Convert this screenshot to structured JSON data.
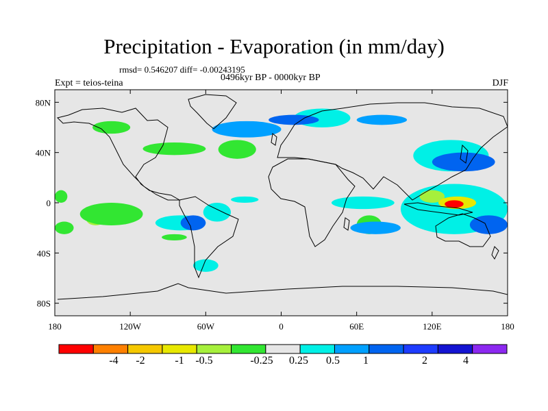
{
  "figure": {
    "title": "Precipitation - Evaporation (in mm/day)",
    "stats": "rmsd= 0.546207 diff= -0.00243195",
    "period": "0496kyr BP - 0000kyr BP",
    "experiment": "Expt = teios-teina",
    "season": "DJF"
  },
  "chart_data": {
    "type": "heatmap",
    "title": "Precipitation - Evaporation (in mm/day)",
    "x_range": [
      -180,
      180
    ],
    "y_range": [
      -90,
      90
    ],
    "x_ticks": [
      {
        "value": -180,
        "label": "180"
      },
      {
        "value": -120,
        "label": "120W"
      },
      {
        "value": -60,
        "label": "60W"
      },
      {
        "value": 0,
        "label": "0"
      },
      {
        "value": 60,
        "label": "60E"
      },
      {
        "value": 120,
        "label": "120E"
      },
      {
        "value": 180,
        "label": "180"
      }
    ],
    "y_ticks": [
      {
        "value": 80,
        "label": "80N"
      },
      {
        "value": 40,
        "label": "40N"
      },
      {
        "value": 0,
        "label": "0"
      },
      {
        "value": -40,
        "label": "40S"
      },
      {
        "value": -80,
        "label": "80S"
      }
    ],
    "colorbar": {
      "colors": [
        "#ff0000",
        "#ff8000",
        "#f5c800",
        "#e8e800",
        "#a6f03c",
        "#32e632",
        "#e6e6e6",
        "#00f0e6",
        "#00a0ff",
        "#0064f0",
        "#1e3cff",
        "#1414d2",
        "#8c28f0"
      ],
      "labels": [
        "-4",
        "-2",
        "-1",
        "-0.5",
        "-0.25",
        "0.25",
        "0.5",
        "1",
        "2",
        "4"
      ]
    },
    "anomaly_regions": [
      {
        "class": 4,
        "lon": [
          -155,
          -140
        ],
        "lat": [
          -8,
          -18
        ]
      },
      {
        "class": 5,
        "lon": [
          -160,
          -110
        ],
        "lat": [
          0,
          -18
        ]
      },
      {
        "class": 7,
        "lon": [
          -100,
          -60
        ],
        "lat": [
          -10,
          -22
        ]
      },
      {
        "class": 9,
        "lon": [
          -80,
          -60
        ],
        "lat": [
          -10,
          -22
        ]
      },
      {
        "class": 7,
        "lon": [
          -40,
          -18
        ],
        "lat": [
          5,
          0
        ]
      },
      {
        "class": 7,
        "lon": [
          -62,
          -40
        ],
        "lat": [
          0,
          -15
        ]
      },
      {
        "class": 5,
        "lon": [
          -110,
          -60
        ],
        "lat": [
          48,
          38
        ]
      },
      {
        "class": 5,
        "lon": [
          -50,
          -20
        ],
        "lat": [
          50,
          35
        ]
      },
      {
        "class": 8,
        "lon": [
          -55,
          0
        ],
        "lat": [
          65,
          52
        ]
      },
      {
        "class": 7,
        "lon": [
          10,
          55
        ],
        "lat": [
          75,
          60
        ]
      },
      {
        "class": 9,
        "lon": [
          -10,
          30
        ],
        "lat": [
          70,
          62
        ]
      },
      {
        "class": 8,
        "lon": [
          60,
          100
        ],
        "lat": [
          70,
          62
        ]
      },
      {
        "class": 5,
        "lon": [
          -150,
          -120
        ],
        "lat": [
          65,
          55
        ]
      },
      {
        "class": 5,
        "lon": [
          60,
          80
        ],
        "lat": [
          -10,
          -25
        ]
      },
      {
        "class": 7,
        "lon": [
          40,
          90
        ],
        "lat": [
          5,
          -5
        ]
      },
      {
        "class": 8,
        "lon": [
          55,
          95
        ],
        "lat": [
          -15,
          -25
        ]
      },
      {
        "class": 7,
        "lon": [
          105,
          165
        ],
        "lat": [
          50,
          25
        ]
      },
      {
        "class": 9,
        "lon": [
          120,
          170
        ],
        "lat": [
          40,
          25
        ]
      },
      {
        "class": 7,
        "lon": [
          95,
          180
        ],
        "lat": [
          15,
          -25
        ]
      },
      {
        "class": 4,
        "lon": [
          110,
          130
        ],
        "lat": [
          10,
          0
        ]
      },
      {
        "class": 3,
        "lon": [
          125,
          155
        ],
        "lat": [
          5,
          -5
        ]
      },
      {
        "class": 0,
        "lon": [
          130,
          145
        ],
        "lat": [
          2,
          -4
        ]
      },
      {
        "class": 9,
        "lon": [
          150,
          180
        ],
        "lat": [
          -10,
          -25
        ]
      },
      {
        "class": 5,
        "lon": [
          -180,
          -165
        ],
        "lat": [
          -15,
          -25
        ]
      },
      {
        "class": 5,
        "lon": [
          -180,
          -170
        ],
        "lat": [
          10,
          0
        ]
      },
      {
        "class": 7,
        "lon": [
          -70,
          -50
        ],
        "lat": [
          -45,
          -55
        ]
      },
      {
        "class": 5,
        "lon": [
          -95,
          -75
        ],
        "lat": [
          -25,
          -30
        ]
      }
    ]
  }
}
